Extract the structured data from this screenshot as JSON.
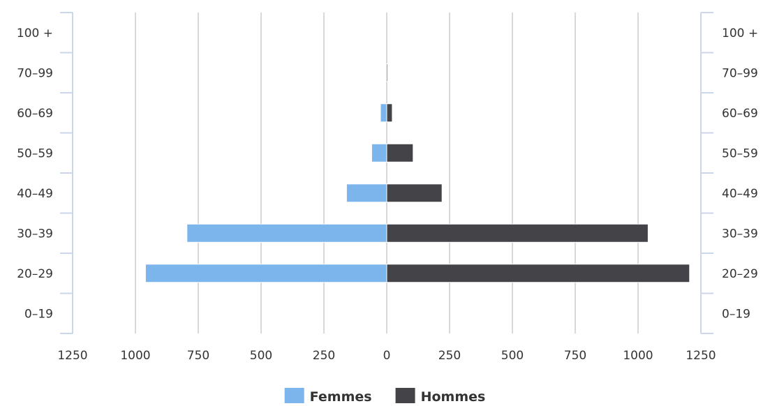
{
  "chart_data": {
    "type": "bar",
    "orientation": "horizontal",
    "layout": "population-pyramid",
    "categories": [
      "100 +",
      "70-99",
      "60-69",
      "50-59",
      "40-49",
      "30-39",
      "20-29",
      "0-19"
    ],
    "series": [
      {
        "name": "Femmes",
        "side": "left",
        "color": "#7cb5ec",
        "values": [
          0,
          0,
          25,
          60,
          160,
          795,
          960,
          0
        ]
      },
      {
        "name": "Hommes",
        "side": "right",
        "color": "#434348",
        "values": [
          0,
          3,
          22,
          105,
          220,
          1040,
          1205,
          0
        ]
      }
    ],
    "xlim": [
      -1250,
      1250
    ],
    "x_ticks": [
      -1250,
      -1000,
      -750,
      -500,
      -250,
      0,
      250,
      500,
      750,
      1000,
      1250
    ],
    "x_tick_labels": [
      "1250",
      "1000",
      "750",
      "500",
      "250",
      "0",
      "250",
      "500",
      "750",
      "1000",
      "1250"
    ],
    "grid": true,
    "legend_position": "bottom-center"
  }
}
